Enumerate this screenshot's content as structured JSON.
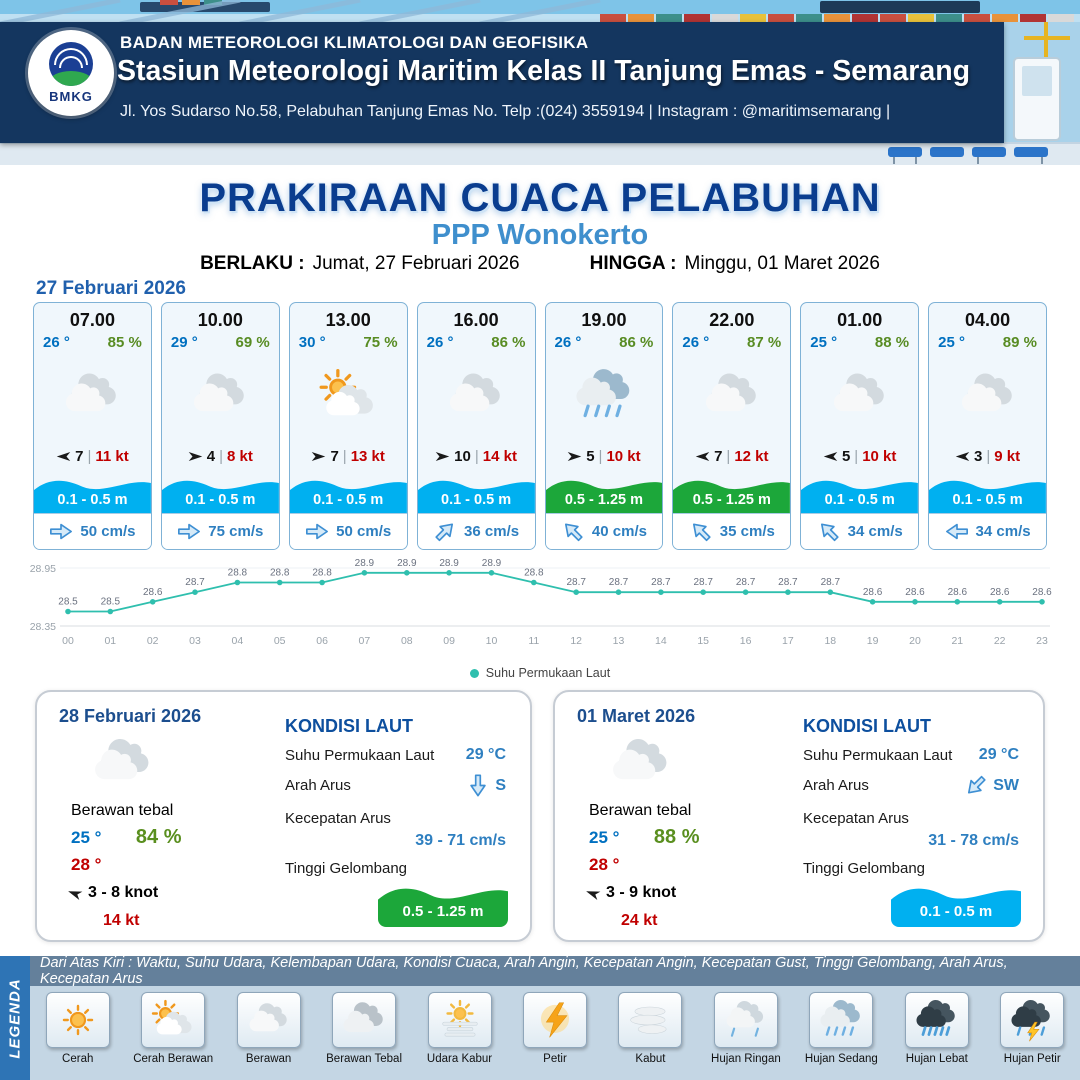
{
  "header": {
    "agency": "BADAN METEOROLOGI KLIMATOLOGI DAN GEOFISIKA",
    "station": "Stasiun Meteorologi Maritim Kelas II Tanjung Emas - Semarang",
    "address": "Jl. Yos Sudarso No.58, Pelabuhan Tanjung Emas No. Telp :(024) 3559194 | Instagram : @maritimsemarang |",
    "logo_text": "BMKG"
  },
  "title": {
    "main": "PRAKIRAAN CUACA PELABUHAN",
    "location": "PPP Wonokerto",
    "berlaku_label": "BERLAKU :",
    "berlaku_value": "Jumat, 27 Februari 2026",
    "hingga_label": "HINGGA :",
    "hingga_value": "Minggu, 01 Maret 2026"
  },
  "forecast": {
    "date": "27 Februari 2026",
    "sep": "|",
    "cards": [
      {
        "time": "07.00",
        "temp": "26 °",
        "hum": "85 %",
        "icon": "berawan",
        "wind_deg": 180,
        "wind": "7",
        "gust": "11 kt",
        "wave": "0.1 - 0.5 m",
        "wave_color": "blue",
        "cur_deg": 0,
        "current": "50 cm/s"
      },
      {
        "time": "10.00",
        "temp": "29 °",
        "hum": "69 %",
        "icon": "berawan",
        "wind_deg": 0,
        "wind": "4",
        "gust": "8 kt",
        "wave": "0.1 - 0.5 m",
        "wave_color": "blue",
        "cur_deg": 0,
        "current": "75 cm/s"
      },
      {
        "time": "13.00",
        "temp": "30 °",
        "hum": "75 %",
        "icon": "cerah-berawan",
        "wind_deg": 0,
        "wind": "7",
        "gust": "13 kt",
        "wave": "0.1 - 0.5 m",
        "wave_color": "blue",
        "cur_deg": 0,
        "current": "50 cm/s"
      },
      {
        "time": "16.00",
        "temp": "26 °",
        "hum": "86 %",
        "icon": "berawan",
        "wind_deg": 0,
        "wind": "10",
        "gust": "14 kt",
        "wave": "0.1 - 0.5 m",
        "wave_color": "blue",
        "cur_deg": -45,
        "current": "36 cm/s"
      },
      {
        "time": "19.00",
        "temp": "26 °",
        "hum": "86 %",
        "icon": "hujan-sedang",
        "wind_deg": 0,
        "wind": "5",
        "gust": "10 kt",
        "wave": "0.5 - 1.25 m",
        "wave_color": "green",
        "cur_deg": -135,
        "current": "40 cm/s"
      },
      {
        "time": "22.00",
        "temp": "26 °",
        "hum": "87 %",
        "icon": "berawan",
        "wind_deg": 180,
        "wind": "7",
        "gust": "12 kt",
        "wave": "0.5 - 1.25 m",
        "wave_color": "green",
        "cur_deg": -135,
        "current": "35 cm/s"
      },
      {
        "time": "01.00",
        "temp": "25 °",
        "hum": "88 %",
        "icon": "berawan",
        "wind_deg": 180,
        "wind": "5",
        "gust": "10 kt",
        "wave": "0.1 - 0.5 m",
        "wave_color": "blue",
        "cur_deg": -135,
        "current": "34 cm/s"
      },
      {
        "time": "04.00",
        "temp": "25 °",
        "hum": "89 %",
        "icon": "berawan",
        "wind_deg": 180,
        "wind": "3",
        "gust": "9 kt",
        "wave": "0.1 - 0.5 m",
        "wave_color": "blue",
        "cur_deg": 180,
        "current": "34 cm/s"
      }
    ]
  },
  "chart_data": {
    "type": "line",
    "x": [
      "00",
      "01",
      "02",
      "03",
      "04",
      "05",
      "06",
      "07",
      "08",
      "09",
      "10",
      "11",
      "12",
      "13",
      "14",
      "15",
      "16",
      "17",
      "18",
      "19",
      "20",
      "21",
      "22",
      "23"
    ],
    "series": [
      {
        "name": "Suhu Permukaan Laut",
        "values": [
          28.5,
          28.5,
          28.6,
          28.7,
          28.8,
          28.8,
          28.8,
          28.9,
          28.9,
          28.9,
          28.9,
          28.8,
          28.7,
          28.7,
          28.7,
          28.7,
          28.7,
          28.7,
          28.7,
          28.6,
          28.6,
          28.6,
          28.6,
          28.6
        ]
      }
    ],
    "ylim": [
      28.35,
      28.95
    ],
    "yticks": [
      28.35,
      28.95
    ],
    "legend_position": "bottom",
    "grid": false,
    "line_color": "#2fbfae",
    "xlabel": "",
    "ylabel": ""
  },
  "daily": [
    {
      "date": "28 Februari 2026",
      "icon": "berawan",
      "condition": "Berawan tebal",
      "temp_min": "25 °",
      "humidity": "84 %",
      "temp_max": "28 °",
      "wind_deg": 200,
      "wind": "3  - 8 knot",
      "gust": "14 kt",
      "sea_title": "KONDISI LAUT",
      "sst_label": "Suhu Permukaan Laut",
      "sst": "29 °C",
      "current_dir_label": "Arah Arus",
      "current_dir": "S",
      "current_dir_deg": 90,
      "current_speed_label": "Kecepatan Arus",
      "current_speed": "39 - 71 cm/s",
      "wave_label": "Tinggi Gelombang",
      "wave": "0.5 - 1.25 m",
      "wave_color": "green"
    },
    {
      "date": "01 Maret 2026",
      "icon": "berawan",
      "condition": "Berawan tebal",
      "temp_min": "25 °",
      "humidity": "88 %",
      "temp_max": "28 °",
      "wind_deg": 200,
      "wind": "3  - 9 knot",
      "gust": "24 kt",
      "sea_title": "KONDISI LAUT",
      "sst_label": "Suhu Permukaan Laut",
      "sst": "29 °C",
      "current_dir_label": "Arah Arus",
      "current_dir": "SW",
      "current_dir_deg": 135,
      "current_speed_label": "Kecepatan Arus",
      "current_speed": "31 - 78 cm/s",
      "wave_label": "Tinggi Gelombang",
      "wave": "0.1 - 0.5 m",
      "wave_color": "blue"
    }
  ],
  "legend": {
    "strip_title": "LEGENDA",
    "note": "Dari Atas Kiri : Waktu, Suhu Udara, Kelembapan Udara, Kondisi Cuaca, Arah Angin, Kecepatan Angin, Kecepatan Gust, Tinggi Gelombang, Arah Arus, Kecepatan Arus",
    "items": [
      {
        "label": "Cerah",
        "icon": "cerah"
      },
      {
        "label": "Cerah Berawan",
        "icon": "cerah-berawan"
      },
      {
        "label": "Berawan",
        "icon": "berawan"
      },
      {
        "label": "Berawan Tebal",
        "icon": "berawan-tebal"
      },
      {
        "label": "Udara Kabur",
        "icon": "udara-kabur"
      },
      {
        "label": "Petir",
        "icon": "petir"
      },
      {
        "label": "Kabut",
        "icon": "kabut"
      },
      {
        "label": "Hujan Ringan",
        "icon": "hujan-ringan"
      },
      {
        "label": "Hujan Sedang",
        "icon": "hujan-sedang"
      },
      {
        "label": "Hujan Lebat",
        "icon": "hujan-lebat"
      },
      {
        "label": "Hujan Petir",
        "icon": "hujan-petir"
      }
    ]
  },
  "colors": {
    "navy": "#14365f",
    "title_blue": "#0a3d8f",
    "sub_blue": "#3f8fcd",
    "temp_blue": "#0070c0",
    "humidity_green": "#588c23",
    "gust_red": "#c00000",
    "wave_blue": "#00b0f0",
    "wave_green": "#1ca73a",
    "line_teal": "#2fbfae"
  }
}
